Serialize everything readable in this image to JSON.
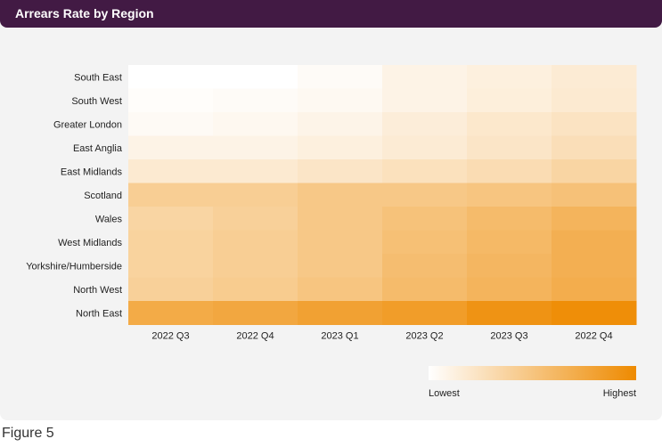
{
  "figure": {
    "title": "Arrears Rate by Region",
    "caption": "Figure 5"
  },
  "legend": {
    "low_label": "Lowest",
    "high_label": "Highest"
  },
  "colors": {
    "header": "#421a44",
    "low": "#ffffff",
    "high": "#ee8a00",
    "background": "#f3f3f3"
  },
  "chart_data": {
    "type": "heatmap",
    "title": "Arrears Rate by Region",
    "x": [
      "2022 Q3",
      "2022 Q4",
      "2023 Q1",
      "2023 Q2",
      "2023 Q3",
      "2022 Q4"
    ],
    "y": [
      "South East",
      "South West",
      "Greater London",
      "East Anglia",
      "East Midlands",
      "Scotland",
      "Wales",
      "West Midlands",
      "Yorkshire/Humberside",
      "North West",
      "North East"
    ],
    "values": [
      [
        0.0,
        0.0,
        0.03,
        0.1,
        0.13,
        0.17
      ],
      [
        0.02,
        0.03,
        0.05,
        0.1,
        0.14,
        0.18
      ],
      [
        0.04,
        0.06,
        0.09,
        0.15,
        0.2,
        0.24
      ],
      [
        0.1,
        0.1,
        0.13,
        0.17,
        0.22,
        0.28
      ],
      [
        0.18,
        0.18,
        0.22,
        0.26,
        0.3,
        0.36
      ],
      [
        0.42,
        0.42,
        0.47,
        0.47,
        0.5,
        0.53
      ],
      [
        0.36,
        0.4,
        0.47,
        0.52,
        0.58,
        0.64
      ],
      [
        0.38,
        0.42,
        0.47,
        0.54,
        0.6,
        0.68
      ],
      [
        0.38,
        0.42,
        0.47,
        0.56,
        0.62,
        0.68
      ],
      [
        0.4,
        0.44,
        0.5,
        0.58,
        0.64,
        0.7
      ],
      [
        0.72,
        0.75,
        0.8,
        0.84,
        0.92,
        0.97
      ]
    ],
    "color_scale": {
      "min_label": "Lowest",
      "max_label": "Highest"
    },
    "legend_position": "bottom-right"
  }
}
